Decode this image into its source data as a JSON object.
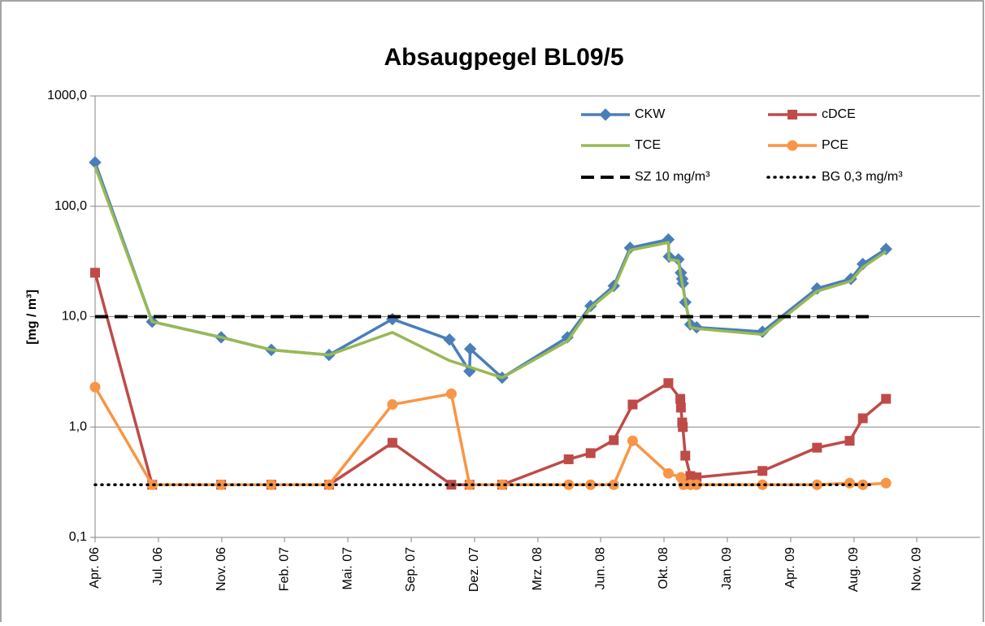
{
  "chart_data": {
    "type": "line",
    "title": "Absaugpegel BL09/5",
    "y_label": "[mg / m³]",
    "y_scale": "log",
    "grid": true,
    "legend": "upper right",
    "xlim": [
      38808,
      40219
    ],
    "xticks": [
      {
        "value": 38808,
        "label": "Apr. 06"
      },
      {
        "value": 38909,
        "label": "Jul. 06"
      },
      {
        "value": 39010,
        "label": "Nov. 06"
      },
      {
        "value": 39110,
        "label": "Feb. 07"
      },
      {
        "value": 39211,
        "label": "Mai. 07"
      },
      {
        "value": 39312,
        "label": "Sep. 07"
      },
      {
        "value": 39413,
        "label": "Dez. 07"
      },
      {
        "value": 39514,
        "label": "Mrz. 08"
      },
      {
        "value": 39614,
        "label": "Jun. 08"
      },
      {
        "value": 39715,
        "label": "Okt. 08"
      },
      {
        "value": 39816,
        "label": "Jan. 09"
      },
      {
        "value": 39917,
        "label": "Apr. 09"
      },
      {
        "value": 40018,
        "label": "Aug. 09"
      },
      {
        "value": 40118,
        "label": "Nov. 09"
      }
    ],
    "ylim": [
      0.1,
      1000
    ],
    "yticks": [
      {
        "value": 0.1,
        "label": "0,1"
      },
      {
        "value": 1,
        "label": "1,0"
      },
      {
        "value": 10,
        "label": "10,0"
      },
      {
        "value": 100,
        "label": "100,0"
      },
      {
        "value": 1000,
        "label": "1000,0"
      }
    ],
    "series": [
      {
        "name": "CKW",
        "color": "#4a7ebb",
        "marker": "diamond",
        "line_style": "solid",
        "x": [
          38808,
          38899,
          39009,
          39089,
          39181,
          39282,
          39373,
          39405,
          39406,
          39457,
          39561,
          39598,
          39635,
          39661,
          39722,
          39723,
          39738,
          39742,
          39744,
          39745,
          39749,
          39757,
          39767,
          39872,
          39959,
          40013,
          40032,
          40069
        ],
        "values": [
          250,
          9,
          6.5,
          5,
          4.5,
          9.5,
          6.2,
          3.2,
          5.1,
          2.8,
          6.5,
          12.5,
          19,
          42,
          50,
          35,
          33,
          25,
          22,
          20,
          13.5,
          8.5,
          8,
          7.3,
          18,
          22,
          30,
          41
        ]
      },
      {
        "name": "cDCE",
        "color": "#be4b48",
        "marker": "square",
        "line_style": "solid",
        "x": [
          38808,
          38899,
          39009,
          39089,
          39181,
          39282,
          39376,
          39405,
          39457,
          39563,
          39598,
          39635,
          39665,
          39722,
          39741,
          39742,
          39744,
          39745,
          39749,
          39757,
          39767,
          39872,
          39959,
          40011,
          40032,
          40069
        ],
        "values": [
          25,
          0.3,
          0.3,
          0.3,
          0.3,
          0.72,
          0.3,
          0.3,
          0.3,
          0.51,
          0.58,
          0.76,
          1.6,
          2.5,
          1.8,
          1.5,
          1.1,
          1.0,
          0.55,
          0.36,
          0.35,
          0.4,
          0.65,
          0.75,
          1.2,
          1.8
        ]
      },
      {
        "name": "TCE",
        "color": "#98b954",
        "marker": "none",
        "line_style": "solid",
        "x": [
          38808,
          38899,
          39009,
          39089,
          39181,
          39282,
          39373,
          39405,
          39457,
          39561,
          39598,
          39635,
          39661,
          39722,
          39723,
          39738,
          39744,
          39757,
          39767,
          39872,
          39959,
          40013,
          40032,
          40069
        ],
        "values": [
          230,
          9,
          6.5,
          5,
          4.5,
          7.2,
          4,
          3.5,
          2.8,
          6,
          12,
          18,
          40,
          47,
          33,
          32,
          20,
          8,
          7.8,
          6.9,
          17,
          21,
          28,
          39
        ]
      },
      {
        "name": "PCE",
        "color": "#f79646",
        "marker": "circle",
        "line_style": "solid",
        "x": [
          38808,
          38899,
          39009,
          39089,
          39181,
          39282,
          39376,
          39405,
          39457,
          39563,
          39598,
          39635,
          39665,
          39722,
          39742,
          39746,
          39757,
          39767,
          39872,
          39959,
          40011,
          40032,
          40069
        ],
        "values": [
          2.3,
          0.3,
          0.3,
          0.3,
          0.3,
          1.6,
          2.0,
          0.3,
          0.3,
          0.3,
          0.3,
          0.3,
          0.75,
          0.38,
          0.35,
          0.3,
          0.3,
          0.3,
          0.3,
          0.3,
          0.31,
          0.3,
          0.31
        ]
      },
      {
        "name": "SZ 10 mg/m³",
        "color": "#000000",
        "marker": "none",
        "line_style": "dashed",
        "x": [
          38808,
          40049
        ],
        "values": [
          10,
          10
        ]
      },
      {
        "name": "BG 0,3 mg/m³",
        "color": "#000000",
        "marker": "none",
        "line_style": "dotted",
        "x": [
          38808,
          40049
        ],
        "values": [
          0.3,
          0.3
        ]
      }
    ]
  }
}
